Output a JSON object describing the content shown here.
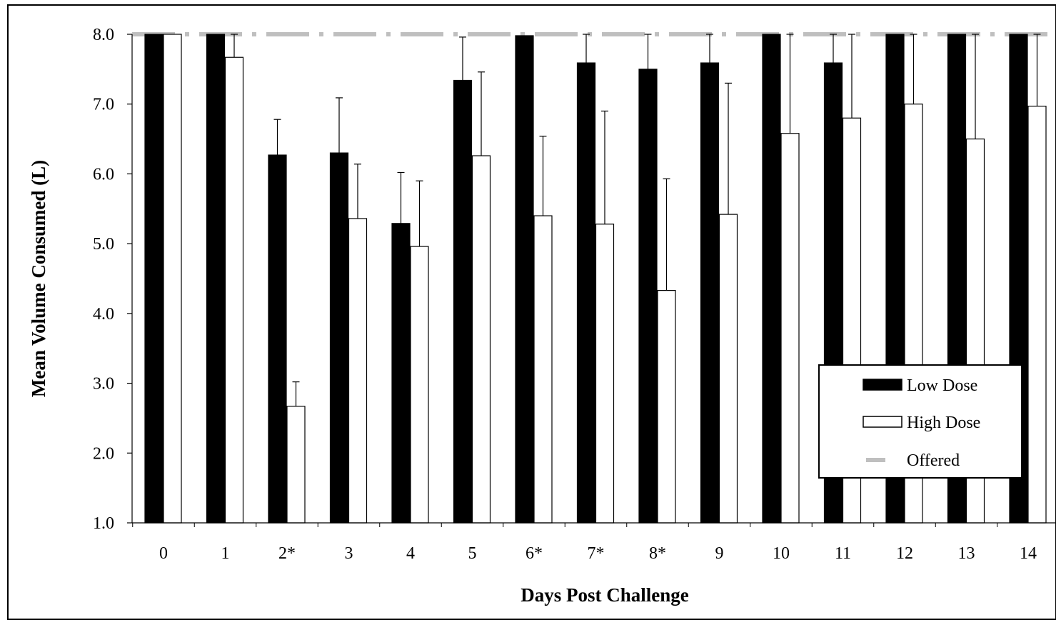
{
  "chart_data": {
    "type": "bar",
    "title": "",
    "xlabel": "Days Post Challenge",
    "ylabel": "Mean Volume Consumed (L)",
    "ylim": [
      1.0,
      8.0
    ],
    "yticks": [
      "1.0",
      "2.0",
      "3.0",
      "4.0",
      "5.0",
      "6.0",
      "7.0",
      "8.0"
    ],
    "categories": [
      "0",
      "1",
      "2*",
      "3",
      "4",
      "5",
      "6*",
      "7*",
      "8*",
      "9",
      "10",
      "11",
      "12",
      "13",
      "14"
    ],
    "series": [
      {
        "name": "Low Dose",
        "color": "#000000",
        "values": [
          8.0,
          8.0,
          6.27,
          6.3,
          5.29,
          7.34,
          7.98,
          7.59,
          7.5,
          7.59,
          8.0,
          7.59,
          8.0,
          8.0,
          8.0
        ],
        "error": [
          0.0,
          0.0,
          0.51,
          0.79,
          0.73,
          0.62,
          0.0,
          0.41,
          0.5,
          0.41,
          0.0,
          0.41,
          0.0,
          0.0,
          0.0
        ]
      },
      {
        "name": "High Dose",
        "color": "#ffffff",
        "values": [
          8.0,
          7.67,
          2.67,
          5.36,
          4.96,
          6.26,
          5.4,
          5.28,
          4.33,
          5.42,
          6.58,
          6.8,
          7.0,
          6.5,
          6.97
        ],
        "error": [
          0.0,
          0.33,
          0.35,
          0.78,
          0.94,
          1.2,
          1.14,
          1.62,
          1.6,
          1.88,
          1.42,
          1.2,
          1.0,
          1.5,
          1.03
        ]
      }
    ],
    "reference_line": {
      "name": "Offered",
      "value": 8.0,
      "color": "#bfbfbf"
    },
    "legend": {
      "position": "bottom-right",
      "entries": [
        "Low Dose",
        "High Dose",
        "Offered"
      ]
    },
    "grid": false
  }
}
